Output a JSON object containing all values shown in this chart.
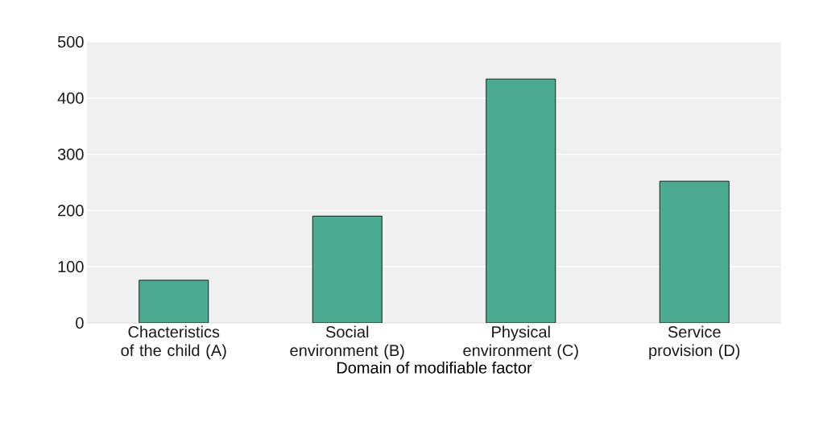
{
  "chart_data": {
    "type": "bar",
    "xlabel": "Domain of modifiable factor",
    "categories": [
      "Chacteristics of the child (A)",
      "Social environment (B)",
      "Physical environment (C)",
      "Service provision (D)"
    ],
    "values": [
      76,
      190,
      434,
      252
    ],
    "color": "#4dab91",
    "ylim": [
      0,
      500
    ],
    "yticks": [
      0,
      100,
      200,
      300,
      400,
      500
    ],
    "grid": "y"
  }
}
